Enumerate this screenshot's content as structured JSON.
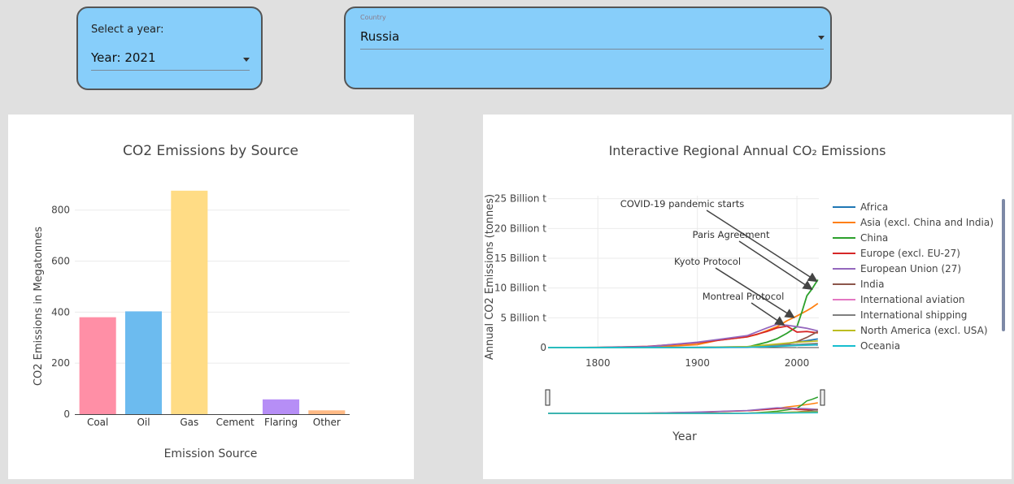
{
  "year_selector": {
    "prompt": "Select a year:",
    "value": "Year: 2021"
  },
  "country_selector": {
    "label": "Country",
    "value": "Russia"
  },
  "source_chart": {
    "title": "CO2 Emissions by Source",
    "xlabel": "Emission Source",
    "ylabel": "CO2 Emissions in Megatonnes",
    "y_ticks": [
      "0",
      "200",
      "400",
      "600",
      "800"
    ],
    "colors": [
      "#ff8fa6",
      "#6cbbef",
      "#ffdc85",
      "#cccccc",
      "#b68ef6",
      "#ffba85"
    ]
  },
  "regional_chart": {
    "title": "Interactive Regional Annual CO₂ Emissions",
    "xlabel": "Year",
    "ylabel": "Annual CO2 Emissions (tonnes)",
    "y_ticks": [
      "0",
      "5 Billion t",
      "10 Billion t",
      "15 Billion t",
      "20 Billion t",
      "25 Billion t"
    ],
    "x_ticks": [
      "1800",
      "1900",
      "2000"
    ],
    "annotations": [
      {
        "text": "COVID-19 pandemic starts",
        "year": 2020
      },
      {
        "text": "Paris Agreement",
        "year": 2015
      },
      {
        "text": "Kyoto Protocol",
        "year": 1997
      },
      {
        "text": "Montreal Protocol",
        "year": 1987
      }
    ],
    "legend": [
      {
        "name": "Africa",
        "color": "#1f77b4"
      },
      {
        "name": "Asia (excl. China and India)",
        "color": "#ff7f0e"
      },
      {
        "name": "China",
        "color": "#2ca02c"
      },
      {
        "name": "Europe (excl. EU-27)",
        "color": "#d62728"
      },
      {
        "name": "European Union (27)",
        "color": "#9467bd"
      },
      {
        "name": "India",
        "color": "#8c564b"
      },
      {
        "name": "International aviation",
        "color": "#e377c2"
      },
      {
        "name": "International shipping",
        "color": "#7f7f7f"
      },
      {
        "name": "North America (excl. USA)",
        "color": "#bcbd22"
      },
      {
        "name": "Oceania",
        "color": "#17becf"
      }
    ]
  },
  "chart_data": [
    {
      "type": "bar",
      "title": "CO2 Emissions by Source",
      "xlabel": "Emission Source",
      "ylabel": "CO2 Emissions in Megatonnes",
      "categories": [
        "Coal",
        "Oil",
        "Gas",
        "Cement",
        "Flaring",
        "Other"
      ],
      "values": [
        380,
        403,
        876,
        0,
        58,
        15
      ],
      "ylim": [
        0,
        920
      ],
      "grid": true,
      "legend": "none"
    },
    {
      "type": "line",
      "title": "Interactive Regional Annual CO₂ Emissions",
      "xlabel": "Year",
      "ylabel": "Annual CO2 Emissions (tonnes)",
      "xlim": [
        1750,
        2022
      ],
      "ylim": [
        0,
        25500000000
      ],
      "grid": true,
      "legend": "right",
      "series": [
        {
          "name": "Africa",
          "x": [
            1750,
            1900,
            1950,
            1980,
            2000,
            2021
          ],
          "y": [
            0,
            20000000,
            100000000,
            500000000,
            900000000,
            1450000000
          ]
        },
        {
          "name": "Asia (excl. China and India)",
          "x": [
            1750,
            1850,
            1900,
            1920,
            1950,
            1960,
            1980,
            1990,
            2000,
            2010,
            2015,
            2021
          ],
          "y": [
            0,
            40000000,
            500000000,
            1200000000,
            1800000000,
            2200000000,
            3500000000,
            4500000000,
            5300000000,
            6200000000,
            6700000000,
            7400000000
          ]
        },
        {
          "name": "China",
          "x": [
            1750,
            1900,
            1950,
            1970,
            1980,
            1990,
            2000,
            2005,
            2010,
            2015,
            2021
          ],
          "y": [
            0,
            0,
            80000000,
            900000000,
            1500000000,
            2400000000,
            3500000000,
            6000000000,
            8700000000,
            9800000000,
            11400000000
          ]
        },
        {
          "name": "Europe (excl. EU-27)",
          "x": [
            1750,
            1800,
            1850,
            1900,
            1950,
            1970,
            1980,
            1990,
            2000,
            2010,
            2021
          ],
          "y": [
            0,
            30000000,
            200000000,
            800000000,
            1800000000,
            2700000000,
            3300000000,
            3600000000,
            2600000000,
            2700000000,
            2450000000
          ]
        },
        {
          "name": "European Union (27)",
          "x": [
            1750,
            1800,
            1850,
            1900,
            1950,
            1970,
            1980,
            1990,
            2000,
            2010,
            2021
          ],
          "y": [
            0,
            15000000,
            150000000,
            900000000,
            2000000000,
            3300000000,
            3900000000,
            3750000000,
            3500000000,
            3250000000,
            2800000000
          ]
        },
        {
          "name": "India",
          "x": [
            1750,
            1900,
            1950,
            1980,
            2000,
            2010,
            2021
          ],
          "y": [
            0,
            20000000,
            100000000,
            350000000,
            1000000000,
            1700000000,
            2700000000
          ]
        },
        {
          "name": "International aviation",
          "x": [
            1750,
            1950,
            1980,
            2000,
            2019,
            2020,
            2021
          ],
          "y": [
            0,
            20000000,
            250000000,
            400000000,
            600000000,
            400000000,
            450000000
          ]
        },
        {
          "name": "International shipping",
          "x": [
            1750,
            1900,
            1950,
            1980,
            2000,
            2021
          ],
          "y": [
            0,
            50000000,
            150000000,
            450000000,
            500000000,
            700000000
          ]
        },
        {
          "name": "North America (excl. USA)",
          "x": [
            1750,
            1900,
            1950,
            1980,
            2000,
            2021
          ],
          "y": [
            0,
            20000000,
            150000000,
            600000000,
            900000000,
            1100000000
          ]
        },
        {
          "name": "Oceania",
          "x": [
            1750,
            1900,
            1950,
            1980,
            2000,
            2021
          ],
          "y": [
            0,
            10000000,
            50000000,
            200000000,
            350000000,
            450000000
          ]
        }
      ]
    }
  ]
}
